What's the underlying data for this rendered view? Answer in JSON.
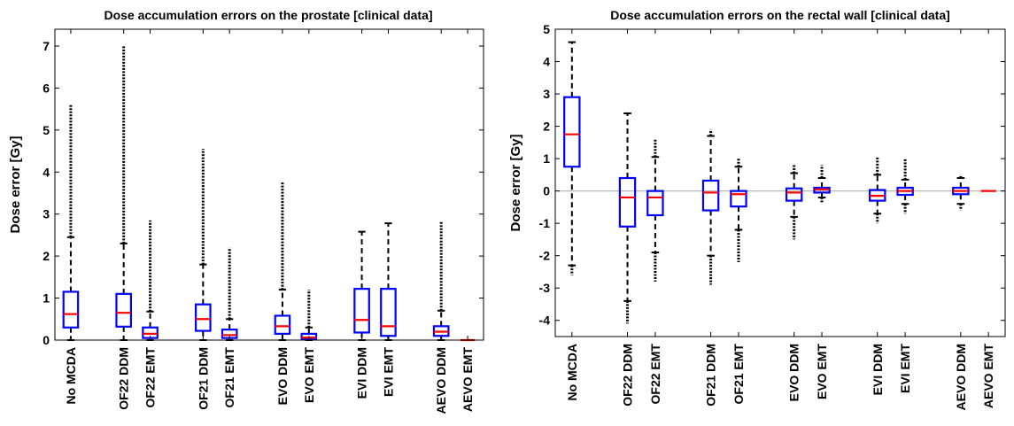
{
  "colors": {
    "box": "#0000ff",
    "median": "#ff0000",
    "whisker": "#000000",
    "outlier": "#000000",
    "zero_line": "#b8b8b8"
  },
  "chart_data": [
    {
      "type": "boxplot",
      "title": "Dose accumulation errors on the prostate [clinical data]",
      "xlabel": "",
      "ylabel": "Dose error [Gy]",
      "ylim": [
        0,
        7.4
      ],
      "yticks": [
        0,
        1,
        2,
        3,
        4,
        5,
        6,
        7
      ],
      "ytick_labels": [
        "0",
        "1",
        "2",
        "3",
        "4",
        "5",
        "6",
        "7"
      ],
      "grid": false,
      "zero_line": false,
      "categories": [
        "No MCDA",
        "OF22 DDM",
        "OF22 EMT",
        "OF21 DDM",
        "OF21 EMT",
        "EVO DDM",
        "EVO EMT",
        "EVI DDM",
        "EVI EMT",
        "AEVO DDM",
        "AEVO EMT"
      ],
      "positions": [
        1,
        3,
        4,
        6,
        7,
        9,
        10,
        12,
        13,
        15,
        16
      ],
      "xlim": [
        0.4,
        16.6
      ],
      "boxes": [
        {
          "q1": 0.3,
          "median": 0.62,
          "q3": 1.15,
          "whisker_low": 0.0,
          "whisker_high": 2.45,
          "outlier_high": 5.6
        },
        {
          "q1": 0.32,
          "median": 0.65,
          "q3": 1.1,
          "whisker_low": 0.0,
          "whisker_high": 2.3,
          "outlier_high": 7.0
        },
        {
          "q1": 0.05,
          "median": 0.15,
          "q3": 0.3,
          "whisker_low": 0.0,
          "whisker_high": 0.68,
          "outlier_high": 2.85
        },
        {
          "q1": 0.22,
          "median": 0.5,
          "q3": 0.85,
          "whisker_low": 0.0,
          "whisker_high": 1.8,
          "outlier_high": 4.55
        },
        {
          "q1": 0.05,
          "median": 0.12,
          "q3": 0.25,
          "whisker_low": 0.0,
          "whisker_high": 0.5,
          "outlier_high": 2.2
        },
        {
          "q1": 0.15,
          "median": 0.33,
          "q3": 0.58,
          "whisker_low": 0.0,
          "whisker_high": 1.2,
          "outlier_high": 3.75
        },
        {
          "q1": 0.02,
          "median": 0.06,
          "q3": 0.15,
          "whisker_low": 0.0,
          "whisker_high": 0.3,
          "outlier_high": 1.2
        },
        {
          "q1": 0.18,
          "median": 0.48,
          "q3": 1.22,
          "whisker_low": 0.0,
          "whisker_high": 2.58,
          "outlier_high": 2.58
        },
        {
          "q1": 0.1,
          "median": 0.33,
          "q3": 1.22,
          "whisker_low": 0.0,
          "whisker_high": 2.78,
          "outlier_high": 2.78
        },
        {
          "q1": 0.1,
          "median": 0.2,
          "q3": 0.33,
          "whisker_low": 0.0,
          "whisker_high": 0.7,
          "outlier_high": 2.82
        },
        {
          "q1": 0.0,
          "median": 0.0,
          "q3": 0.0,
          "whisker_low": 0.0,
          "whisker_high": 0.0,
          "outlier_high": 0.0
        }
      ]
    },
    {
      "type": "boxplot",
      "title": "Dose accumulation errors on the rectal wall [clinical data]",
      "xlabel": "",
      "ylabel": "Dose error [Gy]",
      "ylim": [
        -4.5,
        5.0
      ],
      "yticks": [
        -4,
        -3,
        -2,
        -1,
        0,
        1,
        2,
        3,
        4,
        5
      ],
      "ytick_labels": [
        "-4",
        "-3",
        "-2",
        "-1",
        "0",
        "1",
        "2",
        "3",
        "4",
        "5"
      ],
      "grid": false,
      "zero_line": true,
      "categories": [
        "No MCDA",
        "OF22 DDM",
        "OF22 EMT",
        "OF21 DDM",
        "OF21 EMT",
        "EVO DDM",
        "EVO EMT",
        "EVI DDM",
        "EVI EMT",
        "AEVO DDM",
        "AEVO EMT"
      ],
      "positions": [
        1,
        3,
        4,
        6,
        7,
        9,
        10,
        12,
        13,
        15,
        16
      ],
      "xlim": [
        0.4,
        16.6
      ],
      "boxes": [
        {
          "q1": 0.75,
          "median": 1.75,
          "q3": 2.9,
          "whisker_low": -2.3,
          "whisker_high": 4.6,
          "outlier_low": -2.6,
          "outlier_high": 4.6
        },
        {
          "q1": -1.1,
          "median": -0.2,
          "q3": 0.4,
          "whisker_low": -3.4,
          "whisker_high": 2.4,
          "outlier_low": -4.1,
          "outlier_high": 2.4
        },
        {
          "q1": -0.75,
          "median": -0.2,
          "q3": 0.0,
          "whisker_low": -1.9,
          "whisker_high": 1.05,
          "outlier_low": -2.8,
          "outlier_high": 1.6
        },
        {
          "q1": -0.6,
          "median": -0.05,
          "q3": 0.32,
          "whisker_low": -2.0,
          "whisker_high": 1.7,
          "outlier_low": -2.9,
          "outlier_high": 1.9
        },
        {
          "q1": -0.48,
          "median": -0.1,
          "q3": 0.0,
          "whisker_low": -1.2,
          "whisker_high": 0.75,
          "outlier_low": -2.2,
          "outlier_high": 1.0
        },
        {
          "q1": -0.3,
          "median": -0.05,
          "q3": 0.08,
          "whisker_low": -0.8,
          "whisker_high": 0.55,
          "outlier_low": -1.5,
          "outlier_high": 0.8
        },
        {
          "q1": -0.05,
          "median": 0.05,
          "q3": 0.1,
          "whisker_low": -0.2,
          "whisker_high": 0.4,
          "outlier_low": -0.35,
          "outlier_high": 0.8
        },
        {
          "q1": -0.3,
          "median": -0.15,
          "q3": 0.03,
          "whisker_low": -0.7,
          "whisker_high": 0.5,
          "outlier_low": -1.0,
          "outlier_high": 1.05
        },
        {
          "q1": -0.12,
          "median": 0.0,
          "q3": 0.1,
          "whisker_low": -0.4,
          "whisker_high": 0.35,
          "outlier_low": -0.7,
          "outlier_high": 1.0
        },
        {
          "q1": -0.1,
          "median": 0.0,
          "q3": 0.1,
          "whisker_low": -0.4,
          "whisker_high": 0.4,
          "outlier_low": -0.6,
          "outlier_high": 0.5
        },
        {
          "q1": 0.0,
          "median": 0.0,
          "q3": 0.0,
          "whisker_low": 0.0,
          "whisker_high": 0.0
        }
      ]
    }
  ]
}
